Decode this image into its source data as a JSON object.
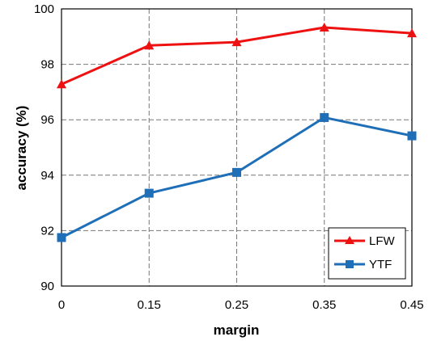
{
  "chart_data": {
    "type": "line",
    "title": "",
    "xlabel": "margin",
    "ylabel": "accuracy (%)",
    "x_tick_labels": [
      "0",
      "0.15",
      "0.25",
      "0.35",
      "0.45"
    ],
    "ylim": [
      90,
      100
    ],
    "yticks": [
      90,
      92,
      94,
      96,
      98,
      100
    ],
    "grid": true,
    "legend_position": "bottom-right",
    "series": [
      {
        "name": "LFW",
        "color": "#ee1111",
        "marker": "triangle",
        "values": [
          97.28,
          98.68,
          98.8,
          99.33,
          99.12
        ]
      },
      {
        "name": "YTF",
        "color": "#1f6fb8",
        "marker": "square",
        "values": [
          91.75,
          93.35,
          94.1,
          96.08,
          95.42
        ]
      }
    ]
  }
}
